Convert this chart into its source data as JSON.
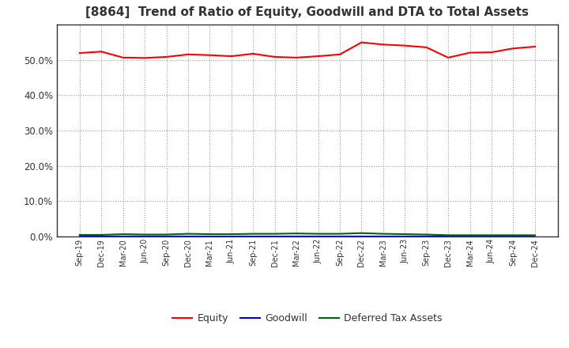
{
  "title": "[8864]  Trend of Ratio of Equity, Goodwill and DTA to Total Assets",
  "x_labels": [
    "Sep-19",
    "Dec-19",
    "Mar-20",
    "Jun-20",
    "Sep-20",
    "Dec-20",
    "Mar-21",
    "Jun-21",
    "Sep-21",
    "Dec-21",
    "Mar-22",
    "Jun-22",
    "Sep-22",
    "Dec-22",
    "Mar-23",
    "Jun-23",
    "Sep-23",
    "Dec-23",
    "Mar-24",
    "Jun-24",
    "Sep-24",
    "Dec-24"
  ],
  "equity": [
    0.519,
    0.523,
    0.506,
    0.505,
    0.508,
    0.515,
    0.513,
    0.51,
    0.517,
    0.508,
    0.506,
    0.51,
    0.515,
    0.549,
    0.543,
    0.54,
    0.535,
    0.506,
    0.52,
    0.521,
    0.532,
    0.537
  ],
  "goodwill": [
    0.001,
    0.001,
    0.001,
    0.001,
    0.001,
    0.001,
    0.001,
    0.001,
    0.001,
    0.001,
    0.001,
    0.001,
    0.001,
    0.001,
    0.001,
    0.001,
    0.001,
    0.001,
    0.001,
    0.001,
    0.001,
    0.001
  ],
  "dta": [
    0.005,
    0.005,
    0.007,
    0.006,
    0.006,
    0.008,
    0.007,
    0.007,
    0.008,
    0.008,
    0.009,
    0.008,
    0.008,
    0.01,
    0.008,
    0.007,
    0.006,
    0.004,
    0.004,
    0.004,
    0.004,
    0.004
  ],
  "equity_color": "#ff0000",
  "goodwill_color": "#0000cc",
  "dta_color": "#006600",
  "ylim": [
    0.0,
    0.6
  ],
  "yticks": [
    0.0,
    0.1,
    0.2,
    0.3,
    0.4,
    0.5
  ],
  "bg_color": "#ffffff",
  "plot_bg_color": "#ffffff",
  "grid_color": "#999999",
  "title_fontsize": 11,
  "title_color": "#333333",
  "legend_labels": [
    "Equity",
    "Goodwill",
    "Deferred Tax Assets"
  ]
}
